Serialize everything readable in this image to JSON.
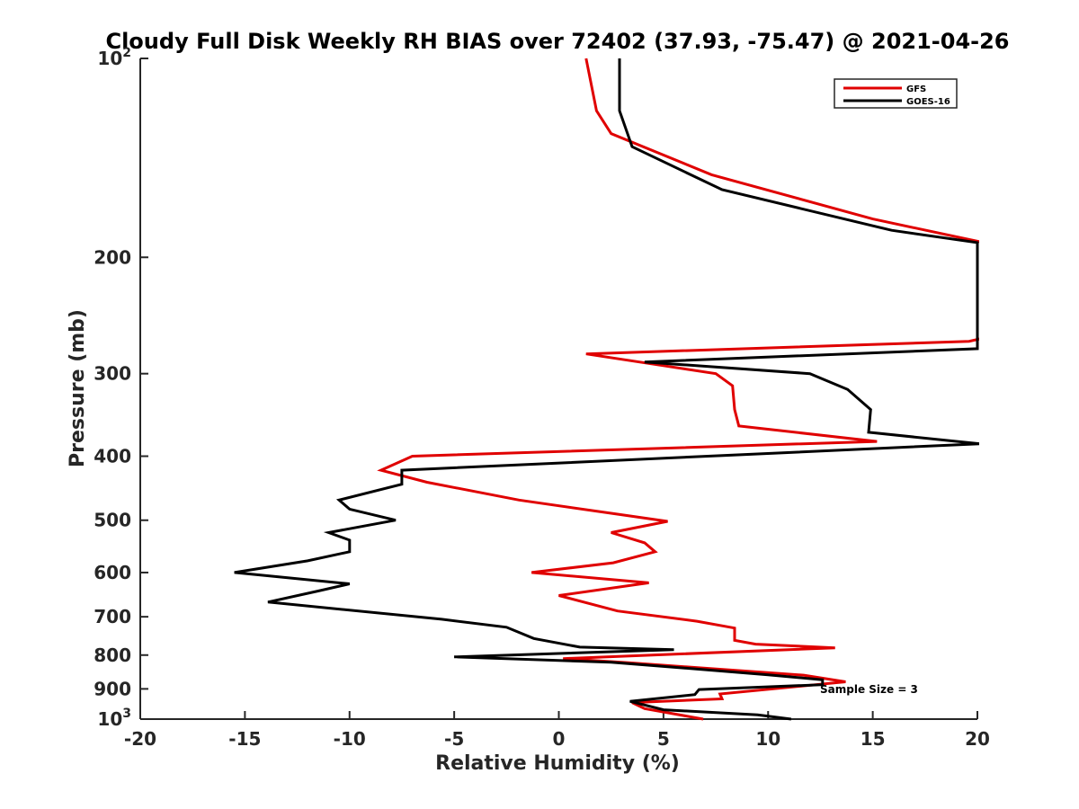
{
  "chart_data": {
    "type": "line",
    "title": "Cloudy Full Disk Weekly RH BIAS over 72402 (37.93, -75.47) @ 2021-04-26",
    "xlabel": "Relative Humidity (%)",
    "ylabel": "Pressure (mb)",
    "xlim": [
      -20,
      20
    ],
    "ylim": [
      100,
      1000
    ],
    "y_scale": "log",
    "y_reversed": true,
    "x_ticks": [
      -20,
      -15,
      -10,
      -5,
      0,
      5,
      10,
      15,
      20
    ],
    "x_tick_labels": [
      "-20",
      "-15",
      "-10",
      "-5",
      "0",
      "5",
      "10",
      "15",
      "20"
    ],
    "y_ticks": [
      100,
      200,
      300,
      400,
      500,
      600,
      700,
      800,
      900,
      1000
    ],
    "y_tick_labels": [
      {
        "base": "10",
        "exp": "2"
      },
      {
        "base": "200",
        "exp": ""
      },
      {
        "base": "300",
        "exp": ""
      },
      {
        "base": "400",
        "exp": ""
      },
      {
        "base": "500",
        "exp": ""
      },
      {
        "base": "600",
        "exp": ""
      },
      {
        "base": "700",
        "exp": ""
      },
      {
        "base": "800",
        "exp": ""
      },
      {
        "base": "900",
        "exp": ""
      },
      {
        "base": "10",
        "exp": "3"
      }
    ],
    "grid": false,
    "legend_position": "top-right",
    "annotation": "Sample Size = 3",
    "series": [
      {
        "name": "GFS",
        "color": "#e00000",
        "points": [
          [
            1.3,
            100
          ],
          [
            1.8,
            120
          ],
          [
            2.5,
            130
          ],
          [
            7.3,
            150
          ],
          [
            15.0,
            175
          ],
          [
            20.3,
            190
          ],
          [
            20.3,
            265
          ],
          [
            19.6,
            268
          ],
          [
            1.3,
            280
          ],
          [
            7.5,
            300
          ],
          [
            8.3,
            313
          ],
          [
            8.4,
            340
          ],
          [
            8.6,
            360
          ],
          [
            15.2,
            380
          ],
          [
            -7.0,
            400
          ],
          [
            -8.5,
            420
          ],
          [
            -6.3,
            438
          ],
          [
            -1.9,
            466
          ],
          [
            2.5,
            488
          ],
          [
            5.2,
            502
          ],
          [
            2.5,
            522
          ],
          [
            4.1,
            541
          ],
          [
            4.6,
            558
          ],
          [
            2.6,
            580
          ],
          [
            -1.3,
            600
          ],
          [
            4.3,
            622
          ],
          [
            0.0,
            650
          ],
          [
            2.8,
            686
          ],
          [
            6.6,
            711
          ],
          [
            8.4,
            728
          ],
          [
            8.4,
            760
          ],
          [
            9.4,
            770
          ],
          [
            13.2,
            780
          ],
          [
            0.2,
            810
          ],
          [
            3.4,
            822
          ],
          [
            11.7,
            858
          ],
          [
            13.7,
            878
          ],
          [
            7.7,
            916
          ],
          [
            7.8,
            932
          ],
          [
            3.5,
            944
          ],
          [
            4.1,
            964
          ],
          [
            6.9,
            1000
          ]
        ]
      },
      {
        "name": "GOES-16",
        "color": "#000000",
        "points": [
          [
            2.9,
            100
          ],
          [
            2.9,
            120
          ],
          [
            3.5,
            136
          ],
          [
            7.8,
            158
          ],
          [
            15.9,
            182
          ],
          [
            20.0,
            190
          ],
          [
            20.0,
            275
          ],
          [
            4.1,
            288
          ],
          [
            12.0,
            300
          ],
          [
            13.8,
            317
          ],
          [
            14.9,
            340
          ],
          [
            14.8,
            368
          ],
          [
            20.1,
            383
          ],
          [
            -7.5,
            420
          ],
          [
            -7.5,
            441
          ],
          [
            -10.5,
            466
          ],
          [
            -10.0,
            481
          ],
          [
            -7.8,
            500
          ],
          [
            -11.0,
            522
          ],
          [
            -10.0,
            536
          ],
          [
            -10.0,
            558
          ],
          [
            -12.0,
            576
          ],
          [
            -15.5,
            600
          ],
          [
            -10.0,
            624
          ],
          [
            -11.5,
            640
          ],
          [
            -13.9,
            665
          ],
          [
            -5.6,
            706
          ],
          [
            -2.5,
            726
          ],
          [
            -1.2,
            755
          ],
          [
            1.0,
            778
          ],
          [
            5.5,
            785
          ],
          [
            -5.0,
            805
          ],
          [
            2.5,
            820
          ],
          [
            10.0,
            857
          ],
          [
            12.6,
            872
          ],
          [
            12.6,
            887
          ],
          [
            6.7,
            902
          ],
          [
            6.5,
            918
          ],
          [
            3.4,
            940
          ],
          [
            5.0,
            968
          ],
          [
            9.5,
            985
          ],
          [
            11.1,
            1000
          ]
        ]
      }
    ]
  }
}
